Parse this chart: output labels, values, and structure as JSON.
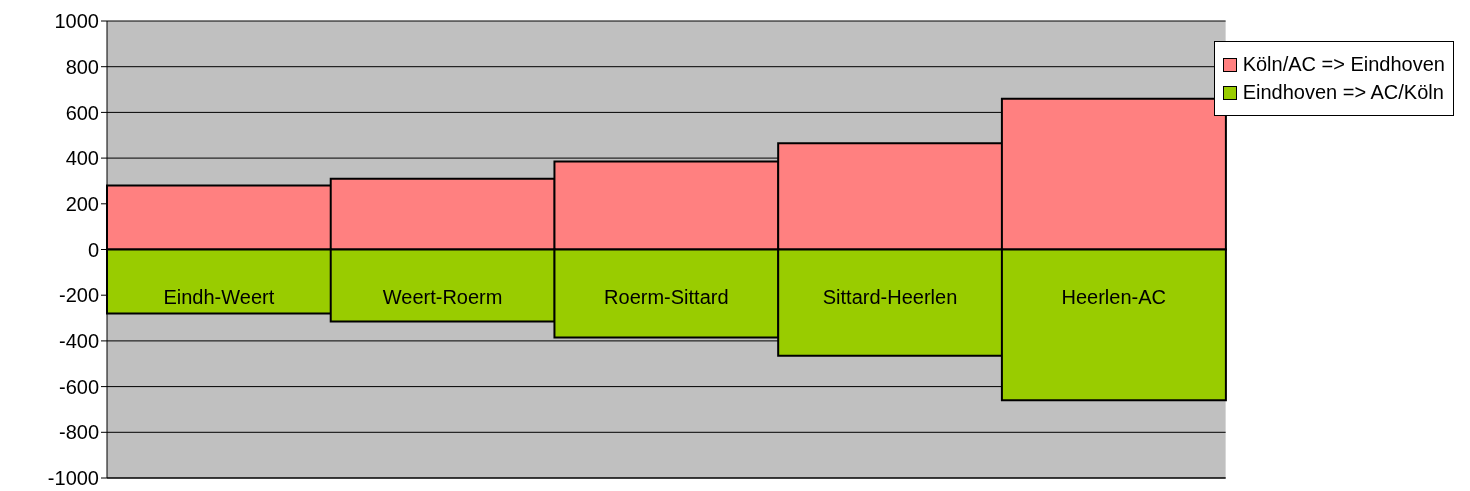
{
  "chart_data": {
    "type": "bar",
    "stacked": true,
    "categories": [
      "Eindh-Weert",
      "Weert-Roerm",
      "Roerm-Sittard",
      "Sittard-Heerlen",
      "Heerlen-AC"
    ],
    "series": [
      {
        "name": "Köln/AC => Eindhoven",
        "color": "#ff8080",
        "values": [
          280,
          310,
          385,
          465,
          660
        ]
      },
      {
        "name": "Eindhoven => AC/Köln",
        "color": "#99cc00",
        "values": [
          -280,
          -315,
          -385,
          -465,
          -660
        ]
      }
    ],
    "ylim": [
      -1000,
      1000
    ],
    "yticks": [
      -1000,
      -800,
      -600,
      -400,
      -200,
      0,
      200,
      400,
      600,
      800,
      1000
    ],
    "grid": "y",
    "legend": "top right"
  }
}
